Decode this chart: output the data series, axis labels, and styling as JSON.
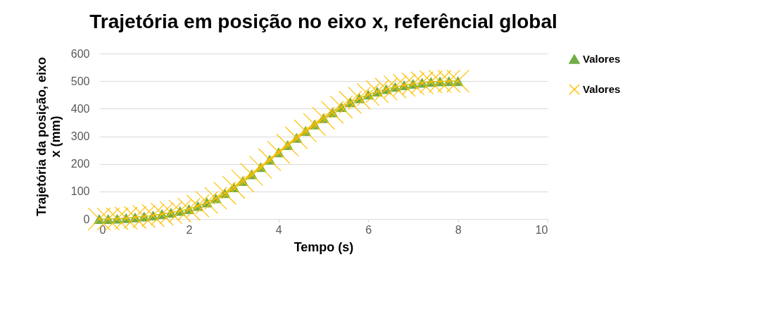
{
  "chart_data": {
    "type": "line",
    "title": "Trajetória em posição no eixo x, referêncial global",
    "xlabel": "Tempo (s)",
    "ylabel": "Trajetória da posição, eixo x (mm)",
    "x": [
      0,
      0.2,
      0.4,
      0.6,
      0.8,
      1,
      1.2,
      1.4,
      1.6,
      1.8,
      2,
      2.2,
      2.4,
      2.6,
      2.8,
      3,
      3.2,
      3.4,
      3.6,
      3.8,
      4,
      4.2,
      4.4,
      4.6,
      4.8,
      5,
      5.2,
      5.4,
      5.6,
      5.8,
      6,
      6.2,
      6.4,
      6.6,
      6.8,
      7,
      7.2,
      7.4,
      7.6,
      7.8,
      8
    ],
    "series": [
      {
        "name": "Valores",
        "color": "#70ad47",
        "marker": "triangle",
        "values": [
          0,
          0,
          1,
          3,
          6,
          9,
          13,
          18,
          23,
          29,
          36,
          47,
          60,
          75,
          94,
          115,
          138,
          162,
          188,
          215,
          242,
          268,
          294,
          319,
          343,
          366,
          387,
          406,
          423,
          438,
          451,
          462,
          471,
          479,
          485,
          490,
          494,
          497,
          499,
          500,
          500
        ]
      },
      {
        "name": "Valores",
        "color": "#ffc000",
        "marker": "cross",
        "values": [
          0,
          0,
          1,
          3,
          6,
          9,
          13,
          18,
          23,
          29,
          36,
          47,
          60,
          75,
          94,
          115,
          138,
          162,
          188,
          215,
          242,
          268,
          294,
          319,
          343,
          366,
          387,
          406,
          423,
          438,
          451,
          462,
          471,
          479,
          485,
          490,
          494,
          497,
          499,
          500,
          500
        ]
      }
    ],
    "xlim": [
      0,
      10
    ],
    "xticks": [
      0,
      2,
      4,
      6,
      8,
      10
    ],
    "ylim": [
      0,
      600
    ],
    "yticks": [
      0,
      100,
      200,
      300,
      400,
      500,
      600
    ],
    "grid": "y",
    "legend": "right"
  }
}
